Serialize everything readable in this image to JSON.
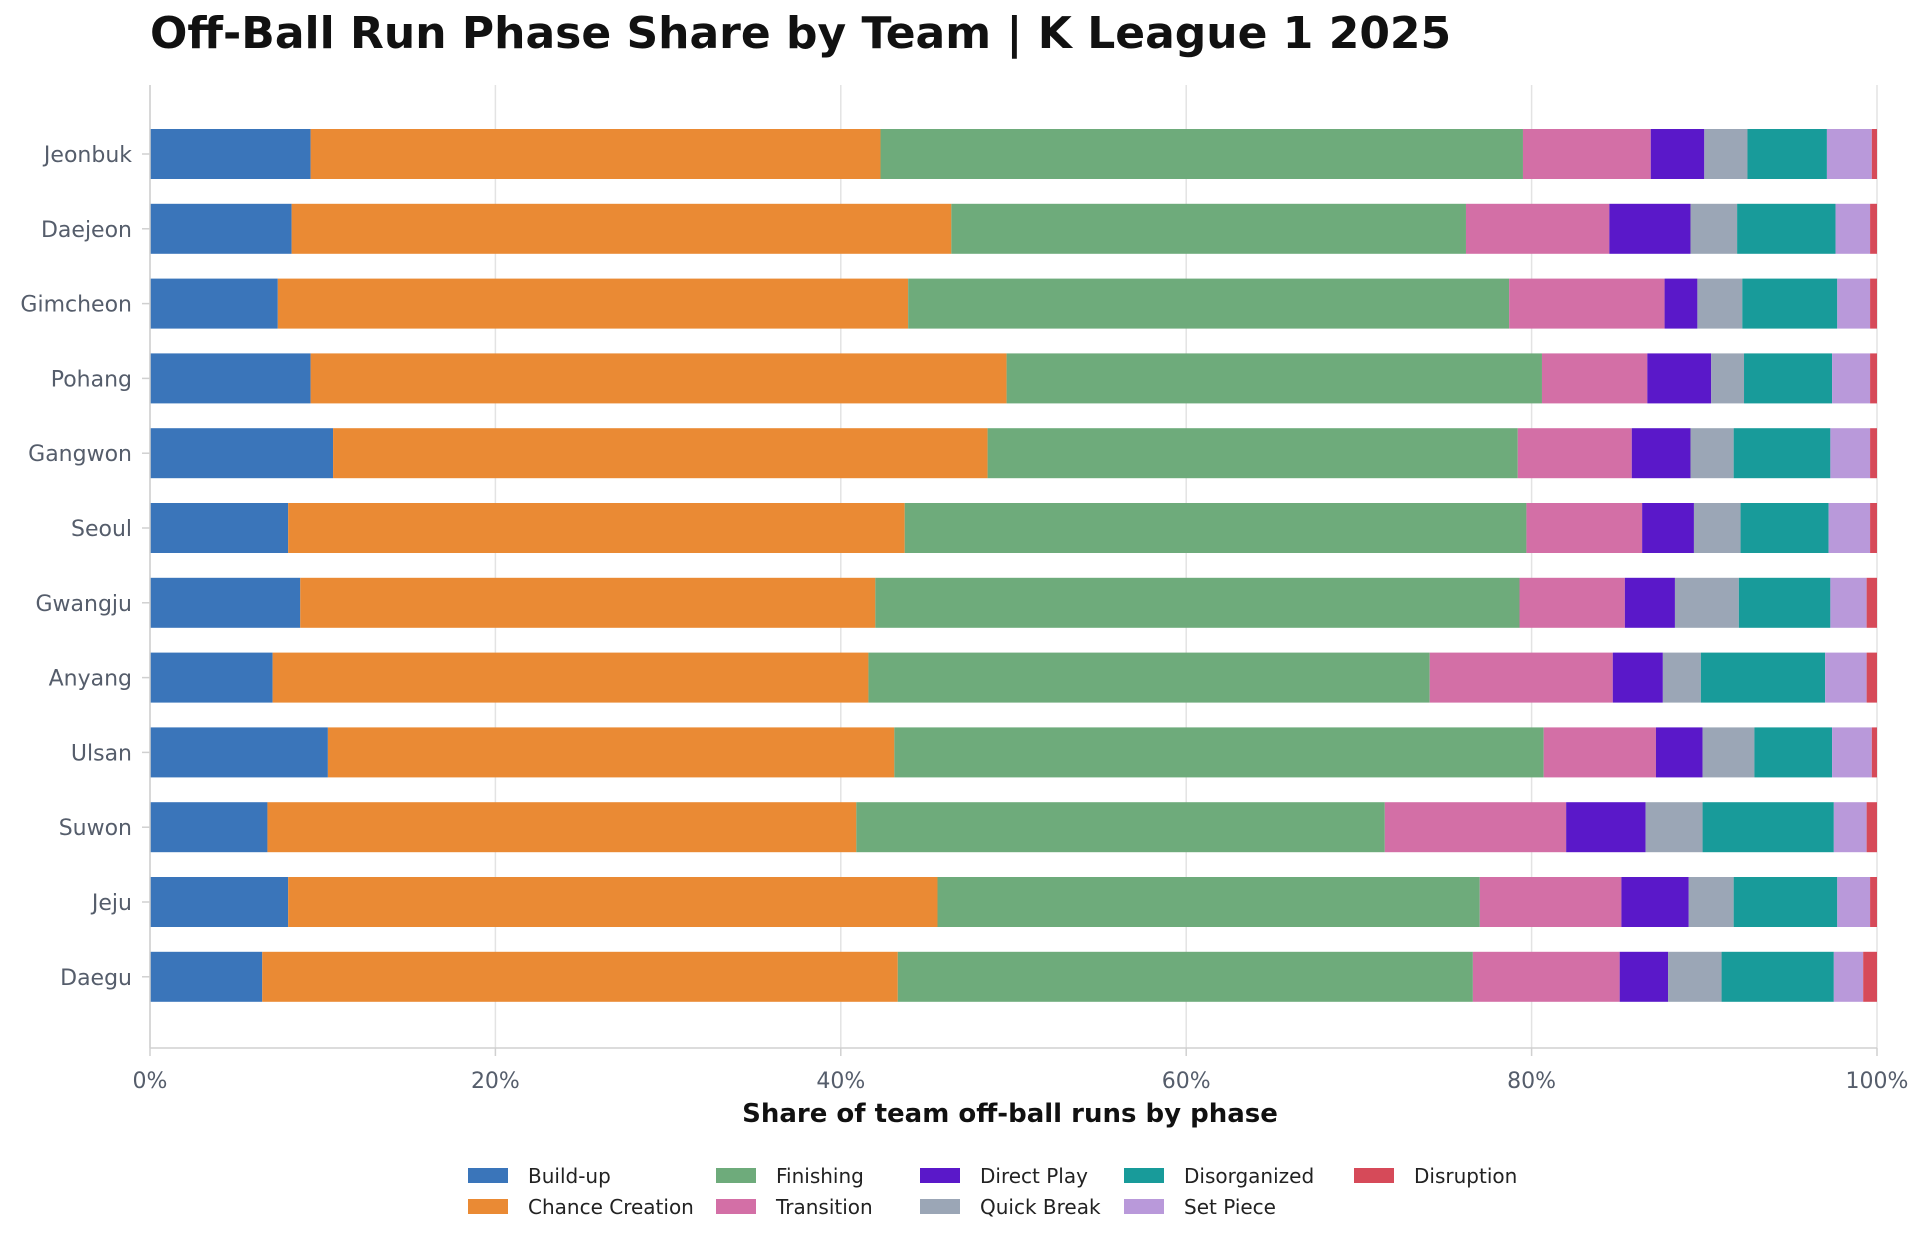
{
  "chart_data": {
    "type": "bar",
    "orientation": "horizontal",
    "stacked": true,
    "title": "Off-Ball Run Phase Share by Team | K League 1 2025",
    "xlabel": "Share of team off-ball runs by phase",
    "ylabel": "",
    "xlim": [
      0,
      100
    ],
    "x_ticks": [
      "0%",
      "20%",
      "40%",
      "60%",
      "80%",
      "100%"
    ],
    "grid": "vertical",
    "legend_position": "bottom",
    "categories": [
      "Jeonbuk",
      "Daejeon",
      "Gimcheon",
      "Pohang",
      "Gangwon",
      "Seoul",
      "Gwangju",
      "Anyang",
      "Ulsan",
      "Suwon",
      "Jeju",
      "Daegu"
    ],
    "series": [
      {
        "name": "Build-up",
        "color": "#3a75ba",
        "values": [
          9.3,
          8.2,
          7.4,
          9.3,
          10.6,
          8.0,
          8.7,
          7.1,
          10.3,
          6.8,
          8.0,
          6.5
        ]
      },
      {
        "name": "Chance Creation",
        "color": "#ea8a34",
        "values": [
          33.0,
          38.2,
          36.5,
          40.3,
          37.9,
          35.7,
          33.3,
          34.5,
          32.8,
          34.1,
          37.6,
          36.8
        ]
      },
      {
        "name": "Finishing",
        "color": "#6eab7b",
        "values": [
          37.2,
          29.8,
          34.8,
          31.0,
          30.7,
          36.0,
          37.3,
          32.5,
          37.6,
          30.6,
          31.4,
          33.3
        ]
      },
      {
        "name": "Transition",
        "color": "#d36fa6",
        "values": [
          7.4,
          8.3,
          9.0,
          6.1,
          6.6,
          6.7,
          6.1,
          10.6,
          6.5,
          10.5,
          8.2,
          8.5
        ]
      },
      {
        "name": "Direct Play",
        "color": "#5a18c9",
        "values": [
          3.1,
          4.7,
          1.9,
          3.7,
          3.4,
          3.0,
          2.9,
          2.9,
          2.7,
          4.6,
          3.9,
          2.8
        ]
      },
      {
        "name": "Quick Break",
        "color": "#9ba6b6",
        "values": [
          2.5,
          2.7,
          2.6,
          1.9,
          2.5,
          2.7,
          3.7,
          2.2,
          3.0,
          3.3,
          2.6,
          3.1
        ]
      },
      {
        "name": "Disorganized",
        "color": "#189b9a",
        "values": [
          4.6,
          5.7,
          5.5,
          5.1,
          5.6,
          5.1,
          5.3,
          7.2,
          4.5,
          7.6,
          6.0,
          6.5
        ]
      },
      {
        "name": "Set Piece",
        "color": "#b999da",
        "values": [
          2.6,
          2.0,
          1.9,
          2.2,
          2.3,
          2.4,
          2.1,
          2.4,
          2.3,
          1.9,
          1.9,
          1.7
        ]
      },
      {
        "name": "Disruption",
        "color": "#d64a59",
        "values": [
          0.3,
          0.4,
          0.4,
          0.4,
          0.4,
          0.4,
          0.6,
          0.6,
          0.3,
          0.6,
          0.4,
          0.8
        ]
      }
    ]
  }
}
